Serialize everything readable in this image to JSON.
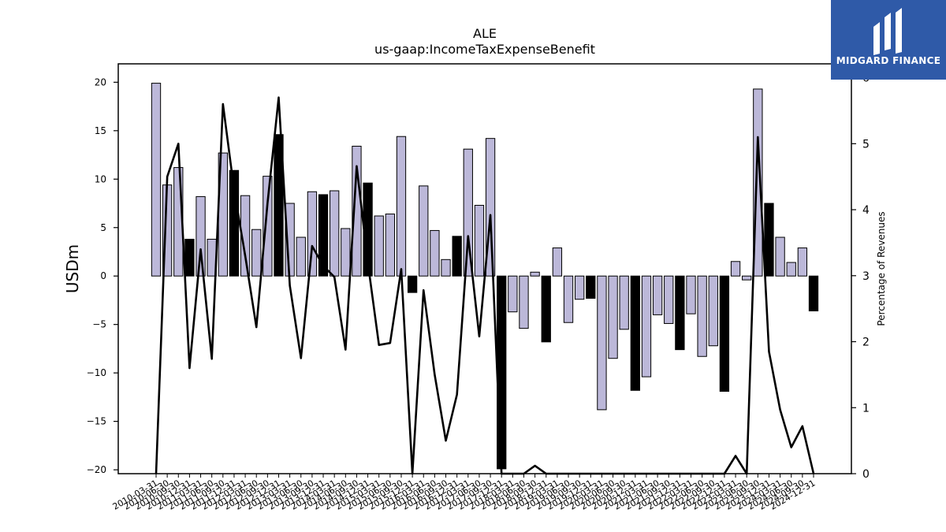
{
  "colors": {
    "bar_default": "#bcb8d9",
    "bar_highlight": "#000000",
    "line": "#000000",
    "logo_bg": "#2f5aa8"
  },
  "logo": {
    "text": "MIDGARD FINANCE",
    "icon": "midgard-logo-icon"
  },
  "chart_data": {
    "type": "bar",
    "title": "ALE",
    "subtitle": "us-gaap:IncomeTaxExpenseBenefit",
    "ylabel": "USDm",
    "y2label": "Percentage of Revenues",
    "ylim": [
      -20.4,
      21.9
    ],
    "y2lim": [
      0,
      6.21
    ],
    "yticks": [
      -20,
      -15,
      -10,
      -5,
      0,
      5,
      10,
      15,
      20
    ],
    "y2ticks": [
      0,
      1,
      2,
      3,
      4,
      5,
      6
    ],
    "grid": false,
    "categories": [
      "2010-03-31",
      "2010-06-30",
      "2010-09-30",
      "2010-12-31",
      "2011-03-31",
      "2011-06-30",
      "2011-09-30",
      "2011-12-31",
      "2012-03-31",
      "2012-06-30",
      "2012-09-30",
      "2012-12-31",
      "2013-03-31",
      "2013-06-30",
      "2013-09-30",
      "2013-12-31",
      "2014-03-31",
      "2014-06-30",
      "2014-09-30",
      "2014-12-31",
      "2015-03-31",
      "2015-06-30",
      "2015-09-30",
      "2015-12-31",
      "2016-03-31",
      "2016-06-30",
      "2016-09-30",
      "2016-12-31",
      "2017-03-31",
      "2017-06-30",
      "2017-09-30",
      "2017-12-31",
      "2018-03-31",
      "2018-06-30",
      "2018-09-30",
      "2018-12-31",
      "2019-03-31",
      "2019-06-30",
      "2019-09-30",
      "2019-12-31",
      "2020-03-31",
      "2020-06-30",
      "2020-09-30",
      "2020-12-31",
      "2021-03-31",
      "2021-06-30",
      "2021-09-30",
      "2021-12-31",
      "2022-03-31",
      "2022-06-30",
      "2022-09-30",
      "2022-12-31",
      "2023-03-31",
      "2023-06-30",
      "2023-09-30",
      "2023-12-31",
      "2024-03-31",
      "2024-06-30",
      "2024-09-30",
      "2024-12-31"
    ],
    "values": [
      19.9,
      9.4,
      11.2,
      3.8,
      8.2,
      3.8,
      12.7,
      10.9,
      8.3,
      4.8,
      10.3,
      14.6,
      7.5,
      4.0,
      8.7,
      8.4,
      8.8,
      4.9,
      13.4,
      9.6,
      6.2,
      6.4,
      14.4,
      -1.7,
      9.3,
      4.7,
      1.7,
      4.1,
      13.1,
      7.3,
      14.2,
      -19.9,
      -3.7,
      -5.4,
      0.4,
      -6.8,
      2.9,
      -4.8,
      -2.4,
      -2.3,
      -13.8,
      -8.5,
      -5.5,
      -11.8,
      -10.4,
      -4.0,
      -4.9,
      -7.6,
      -3.9,
      -8.3,
      -7.2,
      -11.9,
      1.5,
      -0.4,
      19.3,
      7.5,
      4.0,
      1.4,
      2.9,
      -3.6
    ],
    "highlight": [
      false,
      false,
      false,
      true,
      false,
      false,
      false,
      true,
      false,
      false,
      false,
      true,
      false,
      false,
      false,
      true,
      false,
      false,
      false,
      true,
      false,
      false,
      false,
      true,
      false,
      false,
      false,
      true,
      false,
      false,
      false,
      true,
      false,
      false,
      false,
      true,
      false,
      false,
      false,
      true,
      false,
      false,
      false,
      true,
      false,
      false,
      false,
      true,
      false,
      false,
      false,
      true,
      false,
      false,
      false,
      true,
      false,
      false,
      false,
      true
    ],
    "line_values": [
      0,
      4.5,
      5.0,
      1.6,
      3.4,
      1.74,
      5.6,
      4.3,
      3.3,
      2.22,
      4.1,
      5.7,
      2.85,
      1.75,
      3.45,
      3.15,
      2.98,
      1.88,
      4.66,
      3.2,
      1.95,
      1.98,
      3.1,
      0,
      2.78,
      1.5,
      0.5,
      1.2,
      3.6,
      2.08,
      3.92,
      0,
      0,
      0,
      0.12,
      0,
      0,
      0,
      0,
      0,
      0,
      0,
      0,
      0,
      0,
      0,
      0,
      0,
      0,
      0,
      0,
      0,
      0.27,
      0,
      5.1,
      1.85,
      0.97,
      0.4,
      0.72,
      0
    ]
  }
}
